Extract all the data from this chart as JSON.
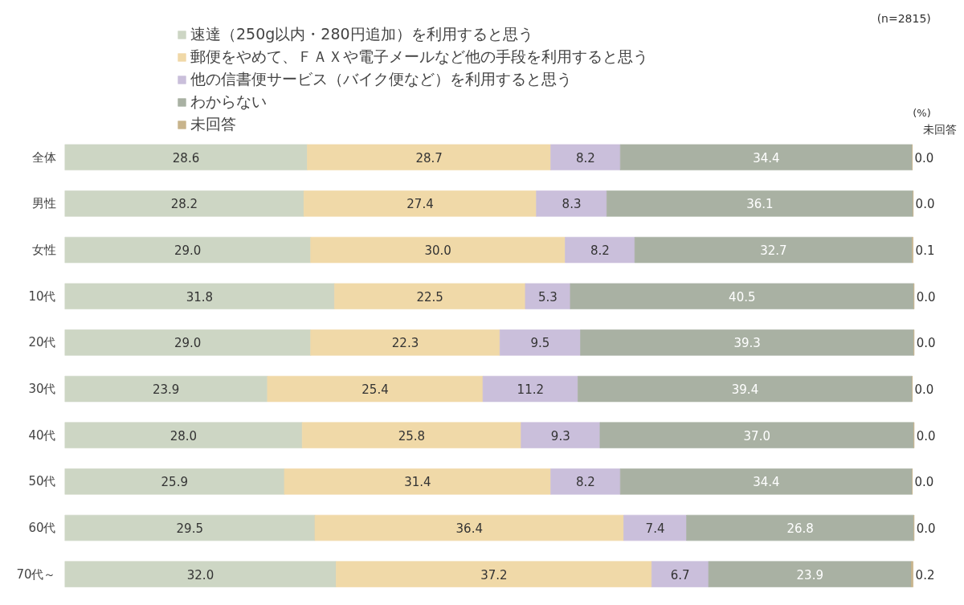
{
  "chart_data": {
    "type": "bar",
    "orientation": "horizontal",
    "stacked": true,
    "legend": "top",
    "grid": false,
    "categories": [
      "全体",
      "男性",
      "女性",
      "10代",
      "20代",
      "30代",
      "40代",
      "50代",
      "60代",
      "70代～"
    ],
    "series": [
      {
        "name": "速達（250g以内・280円追加）を利用すると思う",
        "color": "#cdd6c4",
        "values": [
          28.6,
          28.2,
          29.0,
          31.8,
          29.0,
          23.9,
          28.0,
          25.9,
          29.5,
          32.0
        ],
        "value_labels": [
          "28.6",
          "28.2",
          "29.0",
          "31.8",
          "29.0",
          "23.9",
          "28.0",
          "25.9",
          "29.5",
          "32.0"
        ]
      },
      {
        "name": "郵便をやめて、ＦＡＸや電子メールなど他の手段を利用すると思う",
        "color": "#f0d9a8",
        "values": [
          28.7,
          27.4,
          30.0,
          22.5,
          22.3,
          25.4,
          25.8,
          31.4,
          36.4,
          37.2
        ],
        "value_labels": [
          "28.7",
          "27.4",
          "30.0",
          "22.5",
          "22.3",
          "25.4",
          "25.8",
          "31.4",
          "36.4",
          "37.2"
        ]
      },
      {
        "name": "他の信書便サービス（バイク便など）を利用すると思う",
        "color": "#cabfdb",
        "values": [
          8.2,
          8.3,
          8.2,
          5.3,
          9.5,
          11.2,
          9.3,
          8.2,
          7.4,
          6.7
        ],
        "value_labels": [
          "8.2",
          "8.3",
          "8.2",
          "5.3",
          "9.5",
          "11.2",
          "9.3",
          "8.2",
          "7.4",
          "6.7"
        ]
      },
      {
        "name": "わからない",
        "color": "#a9b1a3",
        "values": [
          34.4,
          36.1,
          32.7,
          40.5,
          39.3,
          39.4,
          37.0,
          34.4,
          26.8,
          23.9
        ],
        "value_labels": [
          "34.4",
          "36.1",
          "32.7",
          "40.5",
          "39.3",
          "39.4",
          "37.0",
          "34.4",
          "26.8",
          "23.9"
        ]
      },
      {
        "name": "未回答",
        "color": "#c8b48c",
        "values": [
          0.0,
          0.0,
          0.1,
          0.0,
          0.0,
          0.0,
          0.0,
          0.0,
          0.0,
          0.2
        ],
        "value_labels": [
          "0.0",
          "0.0",
          "0.1",
          "0.0",
          "0.0",
          "0.0",
          "0.0",
          "0.0",
          "0.0",
          "0.2"
        ]
      }
    ],
    "annotations": [
      "(n=2815)",
      "(%)",
      "未回答"
    ]
  }
}
